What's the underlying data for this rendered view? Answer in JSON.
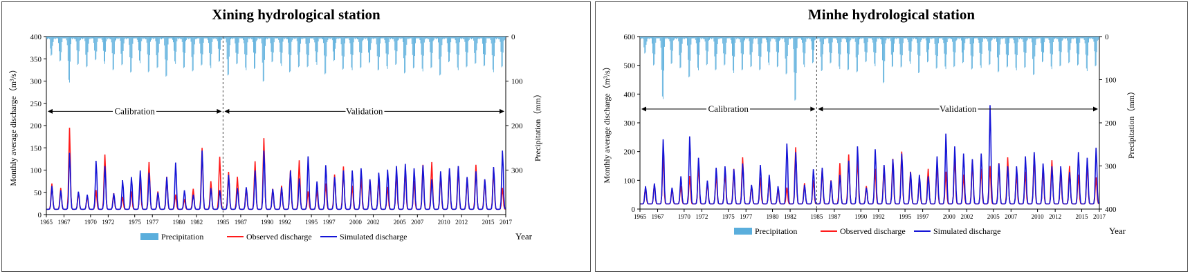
{
  "colors": {
    "precipitation": "#5aaedc",
    "observed": "#ff1a1a",
    "simulated": "#1414d6",
    "frame": "#555555"
  },
  "chart_data": [
    {
      "type": "bar+line",
      "title": "Xining hydrological station",
      "ylabel_left": "Monthly average discharge（m³/s）",
      "ylabel_right": "Precipitation（mm）",
      "xlabel": "Year",
      "ylim_left": [
        0,
        400
      ],
      "yticks_left": [
        "0",
        "50",
        "100",
        "150",
        "200",
        "250",
        "300",
        "350",
        "400"
      ],
      "ylim_right_inverted": [
        0,
        400
      ],
      "yticks_right": [
        "0",
        "100",
        "200",
        "300"
      ],
      "xlim": [
        1965,
        2017
      ],
      "xticks": [
        "1965",
        "1967",
        "1970",
        "1972",
        "1975",
        "1977",
        "1980",
        "1982",
        "1985",
        "1987",
        "1990",
        "1992",
        "1995",
        "1997",
        "2000",
        "2002",
        "2005",
        "2007",
        "2010",
        "2012",
        "2015",
        "2017"
      ],
      "split_year": 1985,
      "period_labels": {
        "calibration": "Calibration",
        "validation": "Validation"
      },
      "legend": [
        "Precipitation",
        "Observed discharge",
        "Simulated discharge"
      ],
      "legend_placement": "bottom",
      "summer_peak_precip_mm": [
        42,
        58,
        105,
        62,
        70,
        55,
        60,
        75,
        65,
        85,
        58,
        80,
        72,
        95,
        60,
        70,
        80,
        68,
        70,
        55,
        90,
        65,
        75,
        72,
        105,
        60,
        65,
        80,
        70,
        72,
        62,
        85,
        55,
        78,
        75,
        70,
        60,
        80,
        72,
        62,
        85,
        75,
        78,
        70,
        90,
        60,
        75,
        68,
        62,
        70,
        80,
        68,
        90
      ],
      "summer_peak_observed_m3s": [
        70,
        60,
        195,
        50,
        42,
        55,
        135,
        48,
        40,
        52,
        75,
        118,
        52,
        85,
        45,
        35,
        58,
        150,
        75,
        130,
        96,
        85,
        60,
        120,
        172,
        58,
        65,
        100,
        122,
        52,
        55,
        70,
        90,
        108,
        65,
        82,
        78,
        82,
        62,
        95,
        102,
        76,
        112,
        118,
        90,
        100,
        108,
        82,
        112,
        79,
        105,
        60,
        38
      ],
      "summer_peak_simulated_m3s": [
        65,
        55,
        140,
        52,
        45,
        122,
        110,
        48,
        78,
        85,
        100,
        95,
        50,
        85,
        118,
        55,
        45,
        145,
        60,
        55,
        90,
        60,
        62,
        100,
        145,
        58,
        62,
        100,
        82,
        132,
        75,
        112,
        85,
        100,
        100,
        105,
        80,
        95,
        102,
        110,
        115,
        105,
        112,
        80,
        98,
        105,
        110,
        85,
        98,
        80,
        108,
        145,
        145
      ]
    },
    {
      "type": "bar+line",
      "title": "Minhe hydrological station",
      "ylabel_left": "Monthly average discharge（m³/s）",
      "ylabel_right": "Precipitation（mm）",
      "xlabel": "Year",
      "ylim_left": [
        0,
        600
      ],
      "yticks_left": [
        "0",
        "100",
        "200",
        "300",
        "400",
        "500",
        "600"
      ],
      "ylim_right_inverted": [
        0,
        400
      ],
      "yticks_right": [
        "0",
        "100",
        "200",
        "300",
        "400"
      ],
      "xlim": [
        1965,
        2017
      ],
      "xticks": [
        "1965",
        "1967",
        "1970",
        "1972",
        "1975",
        "1977",
        "1980",
        "1982",
        "1985",
        "1987",
        "1990",
        "1992",
        "1995",
        "1997",
        "2000",
        "2002",
        "2005",
        "2007",
        "2010",
        "2012",
        "2015",
        "2017"
      ],
      "split_year": 1985,
      "period_labels": {
        "calibration": "Calibration",
        "validation": "Validation"
      },
      "legend": [
        "Precipitation",
        "Observed discharge",
        "Simulated discharge"
      ],
      "legend_placement": "bottom",
      "summer_peak_precip_mm": [
        38,
        70,
        150,
        62,
        75,
        100,
        78,
        65,
        80,
        70,
        85,
        78,
        72,
        82,
        65,
        70,
        90,
        158,
        70,
        60,
        82,
        65,
        75,
        78,
        85,
        62,
        68,
        110,
        72,
        75,
        62,
        85,
        60,
        78,
        75,
        70,
        62,
        80,
        72,
        65,
        85,
        75,
        78,
        72,
        92,
        62,
        75,
        68,
        62,
        70,
        80,
        68,
        90
      ],
      "summer_peak_observed_m3s": [
        75,
        85,
        190,
        70,
        80,
        115,
        150,
        95,
        120,
        130,
        140,
        180,
        80,
        110,
        105,
        70,
        75,
        215,
        90,
        100,
        140,
        100,
        160,
        190,
        175,
        80,
        140,
        150,
        175,
        200,
        130,
        110,
        140,
        160,
        130,
        180,
        120,
        170,
        140,
        150,
        160,
        180,
        120,
        130,
        190,
        140,
        170,
        130,
        150,
        120,
        160,
        110,
        140
      ],
      "summer_peak_simulated_m3s": [
        80,
        90,
        245,
        75,
        115,
        255,
        180,
        100,
        145,
        150,
        140,
        160,
        85,
        155,
        120,
        80,
        230,
        200,
        85,
        140,
        145,
        100,
        120,
        170,
        220,
        75,
        210,
        155,
        175,
        195,
        130,
        120,
        115,
        185,
        265,
        220,
        195,
        175,
        195,
        365,
        160,
        150,
        150,
        185,
        200,
        160,
        150,
        150,
        130,
        200,
        180,
        215,
        225
      ]
    }
  ]
}
